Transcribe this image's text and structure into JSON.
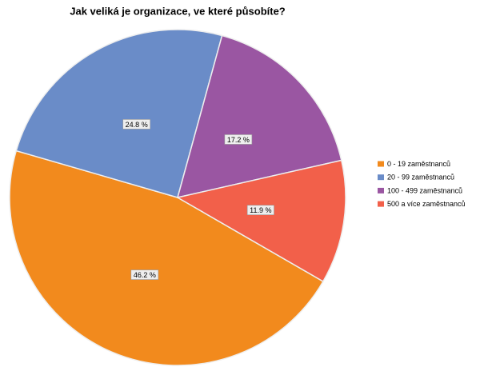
{
  "chart_data": {
    "type": "pie",
    "title": "Jak veliká je organizace, ve které působíte?",
    "categories": [
      "0 - 19 zaměstnanců",
      "20 - 99 zaměstnanců",
      "100 - 499 zaměstnanců",
      "500 a více zaměstnanců"
    ],
    "values": [
      46.2,
      24.8,
      17.2,
      11.9
    ],
    "value_labels": [
      "46.2 %",
      "24.8 %",
      "17.2 %",
      "11.9 %"
    ],
    "colors": [
      "#f28a1d",
      "#6a8cc8",
      "#9a56a2",
      "#f2604a"
    ],
    "legend": "right"
  }
}
